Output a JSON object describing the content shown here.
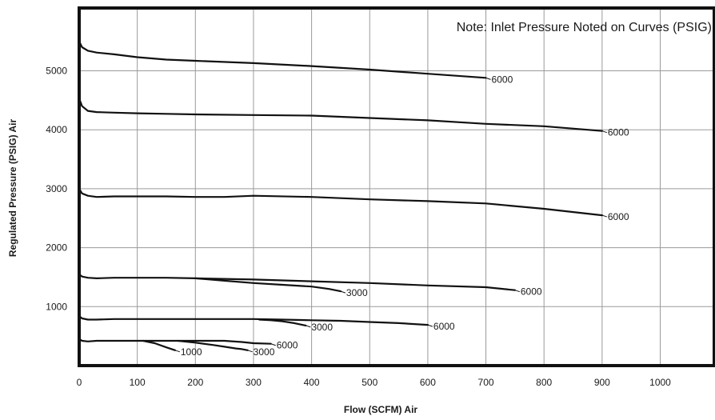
{
  "chart_data": {
    "type": "line",
    "title": "",
    "note": "Note: Inlet Pressure Noted on Curves (PSIG)",
    "xlabel": "Flow (SCFM) Air",
    "ylabel": "Regulated Pressure (PSIG) Air",
    "xlim": [
      0,
      1080
    ],
    "ylim": [
      0,
      6000
    ],
    "x_ticks": [
      "0",
      "100",
      "200",
      "300",
      "400",
      "500",
      "600",
      "700",
      "800",
      "900",
      "1000"
    ],
    "y_ticks": [
      "1000",
      "2000",
      "3000",
      "4000",
      "5000"
    ],
    "x_tick_values": [
      0,
      100,
      200,
      300,
      400,
      500,
      600,
      700,
      800,
      900,
      1000
    ],
    "y_tick_values": [
      1000,
      2000,
      3000,
      4000,
      5000
    ],
    "grid": true,
    "series": [
      {
        "name": "6000",
        "x": [
          0,
          5,
          15,
          30,
          60,
          100,
          150,
          200,
          300,
          400,
          500,
          600,
          700
        ],
        "y": [
          5500,
          5400,
          5340,
          5310,
          5280,
          5230,
          5190,
          5170,
          5130,
          5080,
          5020,
          4950,
          4880
        ]
      },
      {
        "name": "6000",
        "x": [
          0,
          5,
          15,
          30,
          60,
          100,
          150,
          200,
          300,
          400,
          500,
          600,
          700,
          800,
          900
        ],
        "y": [
          4530,
          4400,
          4320,
          4300,
          4290,
          4280,
          4270,
          4260,
          4250,
          4240,
          4200,
          4160,
          4100,
          4060,
          3980
        ]
      },
      {
        "name": "6000",
        "x": [
          0,
          5,
          15,
          30,
          60,
          100,
          150,
          200,
          250,
          300,
          400,
          500,
          600,
          700,
          800,
          900
        ],
        "y": [
          3000,
          2920,
          2880,
          2860,
          2870,
          2870,
          2870,
          2860,
          2860,
          2880,
          2860,
          2820,
          2790,
          2750,
          2660,
          2550
        ]
      },
      {
        "name": "6000",
        "x": [
          0,
          5,
          15,
          30,
          60,
          100,
          150,
          200,
          300,
          400,
          500,
          600,
          700,
          750
        ],
        "y": [
          1550,
          1510,
          1490,
          1480,
          1490,
          1490,
          1490,
          1480,
          1460,
          1430,
          1400,
          1360,
          1330,
          1280
        ]
      },
      {
        "name": "3000",
        "x": [
          200,
          250,
          300,
          350,
          400,
          430,
          450
        ],
        "y": [
          1480,
          1440,
          1400,
          1370,
          1340,
          1300,
          1260
        ]
      },
      {
        "name": "6000",
        "x": [
          0,
          5,
          15,
          30,
          60,
          100,
          150,
          200,
          300,
          350,
          400,
          450,
          500,
          550,
          600
        ],
        "y": [
          840,
          800,
          780,
          780,
          790,
          790,
          790,
          790,
          790,
          780,
          770,
          760,
          740,
          720,
          690
        ]
      },
      {
        "name": "3000",
        "x": [
          310,
          330,
          350,
          370,
          390
        ],
        "y": [
          780,
          770,
          750,
          720,
          680
        ]
      },
      {
        "name": "6000",
        "x": [
          0,
          5,
          15,
          30,
          60,
          100,
          150,
          200,
          250,
          280,
          300,
          330
        ],
        "y": [
          450,
          420,
          410,
          420,
          420,
          420,
          420,
          420,
          420,
          400,
          380,
          370
        ]
      },
      {
        "name": "3000",
        "x": [
          170,
          200,
          230,
          250,
          270,
          280,
          290
        ],
        "y": [
          420,
          390,
          350,
          320,
          290,
          280,
          260
        ]
      },
      {
        "name": "1000",
        "x": [
          110,
          130,
          150,
          165
        ],
        "y": [
          420,
          380,
          310,
          260
        ]
      }
    ],
    "curve_labels": [
      "6000",
      "6000",
      "6000",
      "6000",
      "3000",
      "6000",
      "3000",
      "6000",
      "3000",
      "1000"
    ]
  }
}
